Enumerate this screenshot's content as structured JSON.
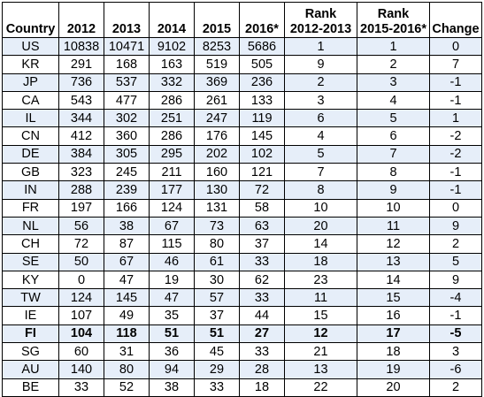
{
  "headers": {
    "country": "Country",
    "y2012": "2012",
    "y2013": "2013",
    "y2014": "2014",
    "y2015": "2015",
    "y2016": "2016*",
    "rank1_line1": "Rank",
    "rank1_line2": "2012-2013",
    "rank2_line1": "Rank",
    "rank2_line2": "2015-2016*",
    "change": "Change"
  },
  "rows": [
    {
      "country": "US",
      "y2012": "10838",
      "y2013": "10471",
      "y2014": "9102",
      "y2015": "8253",
      "y2016": "5686",
      "rank1": "1",
      "rank2": "1",
      "change": "0"
    },
    {
      "country": "KR",
      "y2012": "291",
      "y2013": "168",
      "y2014": "163",
      "y2015": "519",
      "y2016": "505",
      "rank1": "9",
      "rank2": "2",
      "change": "7"
    },
    {
      "country": "JP",
      "y2012": "736",
      "y2013": "537",
      "y2014": "332",
      "y2015": "369",
      "y2016": "236",
      "rank1": "2",
      "rank2": "3",
      "change": "-1"
    },
    {
      "country": "CA",
      "y2012": "543",
      "y2013": "477",
      "y2014": "286",
      "y2015": "261",
      "y2016": "133",
      "rank1": "3",
      "rank2": "4",
      "change": "-1"
    },
    {
      "country": "IL",
      "y2012": "344",
      "y2013": "302",
      "y2014": "251",
      "y2015": "247",
      "y2016": "119",
      "rank1": "6",
      "rank2": "5",
      "change": "1"
    },
    {
      "country": "CN",
      "y2012": "412",
      "y2013": "360",
      "y2014": "286",
      "y2015": "176",
      "y2016": "145",
      "rank1": "4",
      "rank2": "6",
      "change": "-2"
    },
    {
      "country": "DE",
      "y2012": "384",
      "y2013": "305",
      "y2014": "295",
      "y2015": "202",
      "y2016": "102",
      "rank1": "5",
      "rank2": "7",
      "change": "-2"
    },
    {
      "country": "GB",
      "y2012": "323",
      "y2013": "245",
      "y2014": "211",
      "y2015": "160",
      "y2016": "121",
      "rank1": "7",
      "rank2": "8",
      "change": "-1"
    },
    {
      "country": "IN",
      "y2012": "288",
      "y2013": "239",
      "y2014": "177",
      "y2015": "130",
      "y2016": "72",
      "rank1": "8",
      "rank2": "9",
      "change": "-1"
    },
    {
      "country": "FR",
      "y2012": "197",
      "y2013": "166",
      "y2014": "124",
      "y2015": "131",
      "y2016": "58",
      "rank1": "10",
      "rank2": "10",
      "change": "0"
    },
    {
      "country": "NL",
      "y2012": "56",
      "y2013": "38",
      "y2014": "67",
      "y2015": "73",
      "y2016": "63",
      "rank1": "20",
      "rank2": "11",
      "change": "9"
    },
    {
      "country": "CH",
      "y2012": "72",
      "y2013": "87",
      "y2014": "115",
      "y2015": "80",
      "y2016": "37",
      "rank1": "14",
      "rank2": "12",
      "change": "2"
    },
    {
      "country": "SE",
      "y2012": "50",
      "y2013": "67",
      "y2014": "46",
      "y2015": "61",
      "y2016": "33",
      "rank1": "18",
      "rank2": "13",
      "change": "5"
    },
    {
      "country": "KY",
      "y2012": "0",
      "y2013": "47",
      "y2014": "19",
      "y2015": "30",
      "y2016": "62",
      "rank1": "23",
      "rank2": "14",
      "change": "9"
    },
    {
      "country": "TW",
      "y2012": "124",
      "y2013": "145",
      "y2014": "47",
      "y2015": "57",
      "y2016": "33",
      "rank1": "11",
      "rank2": "15",
      "change": "-4"
    },
    {
      "country": "IE",
      "y2012": "107",
      "y2013": "49",
      "y2014": "35",
      "y2015": "37",
      "y2016": "44",
      "rank1": "15",
      "rank2": "16",
      "change": "-1"
    },
    {
      "country": "FI",
      "y2012": "104",
      "y2013": "118",
      "y2014": "51",
      "y2015": "51",
      "y2016": "27",
      "rank1": "12",
      "rank2": "17",
      "change": "-5",
      "bold": true
    },
    {
      "country": "SG",
      "y2012": "60",
      "y2013": "31",
      "y2014": "36",
      "y2015": "45",
      "y2016": "33",
      "rank1": "21",
      "rank2": "18",
      "change": "3"
    },
    {
      "country": "AU",
      "y2012": "140",
      "y2013": "80",
      "y2014": "94",
      "y2015": "29",
      "y2016": "28",
      "rank1": "13",
      "rank2": "19",
      "change": "-6"
    },
    {
      "country": "BE",
      "y2012": "33",
      "y2013": "52",
      "y2014": "38",
      "y2015": "33",
      "y2016": "18",
      "rank1": "22",
      "rank2": "20",
      "change": "2"
    }
  ]
}
